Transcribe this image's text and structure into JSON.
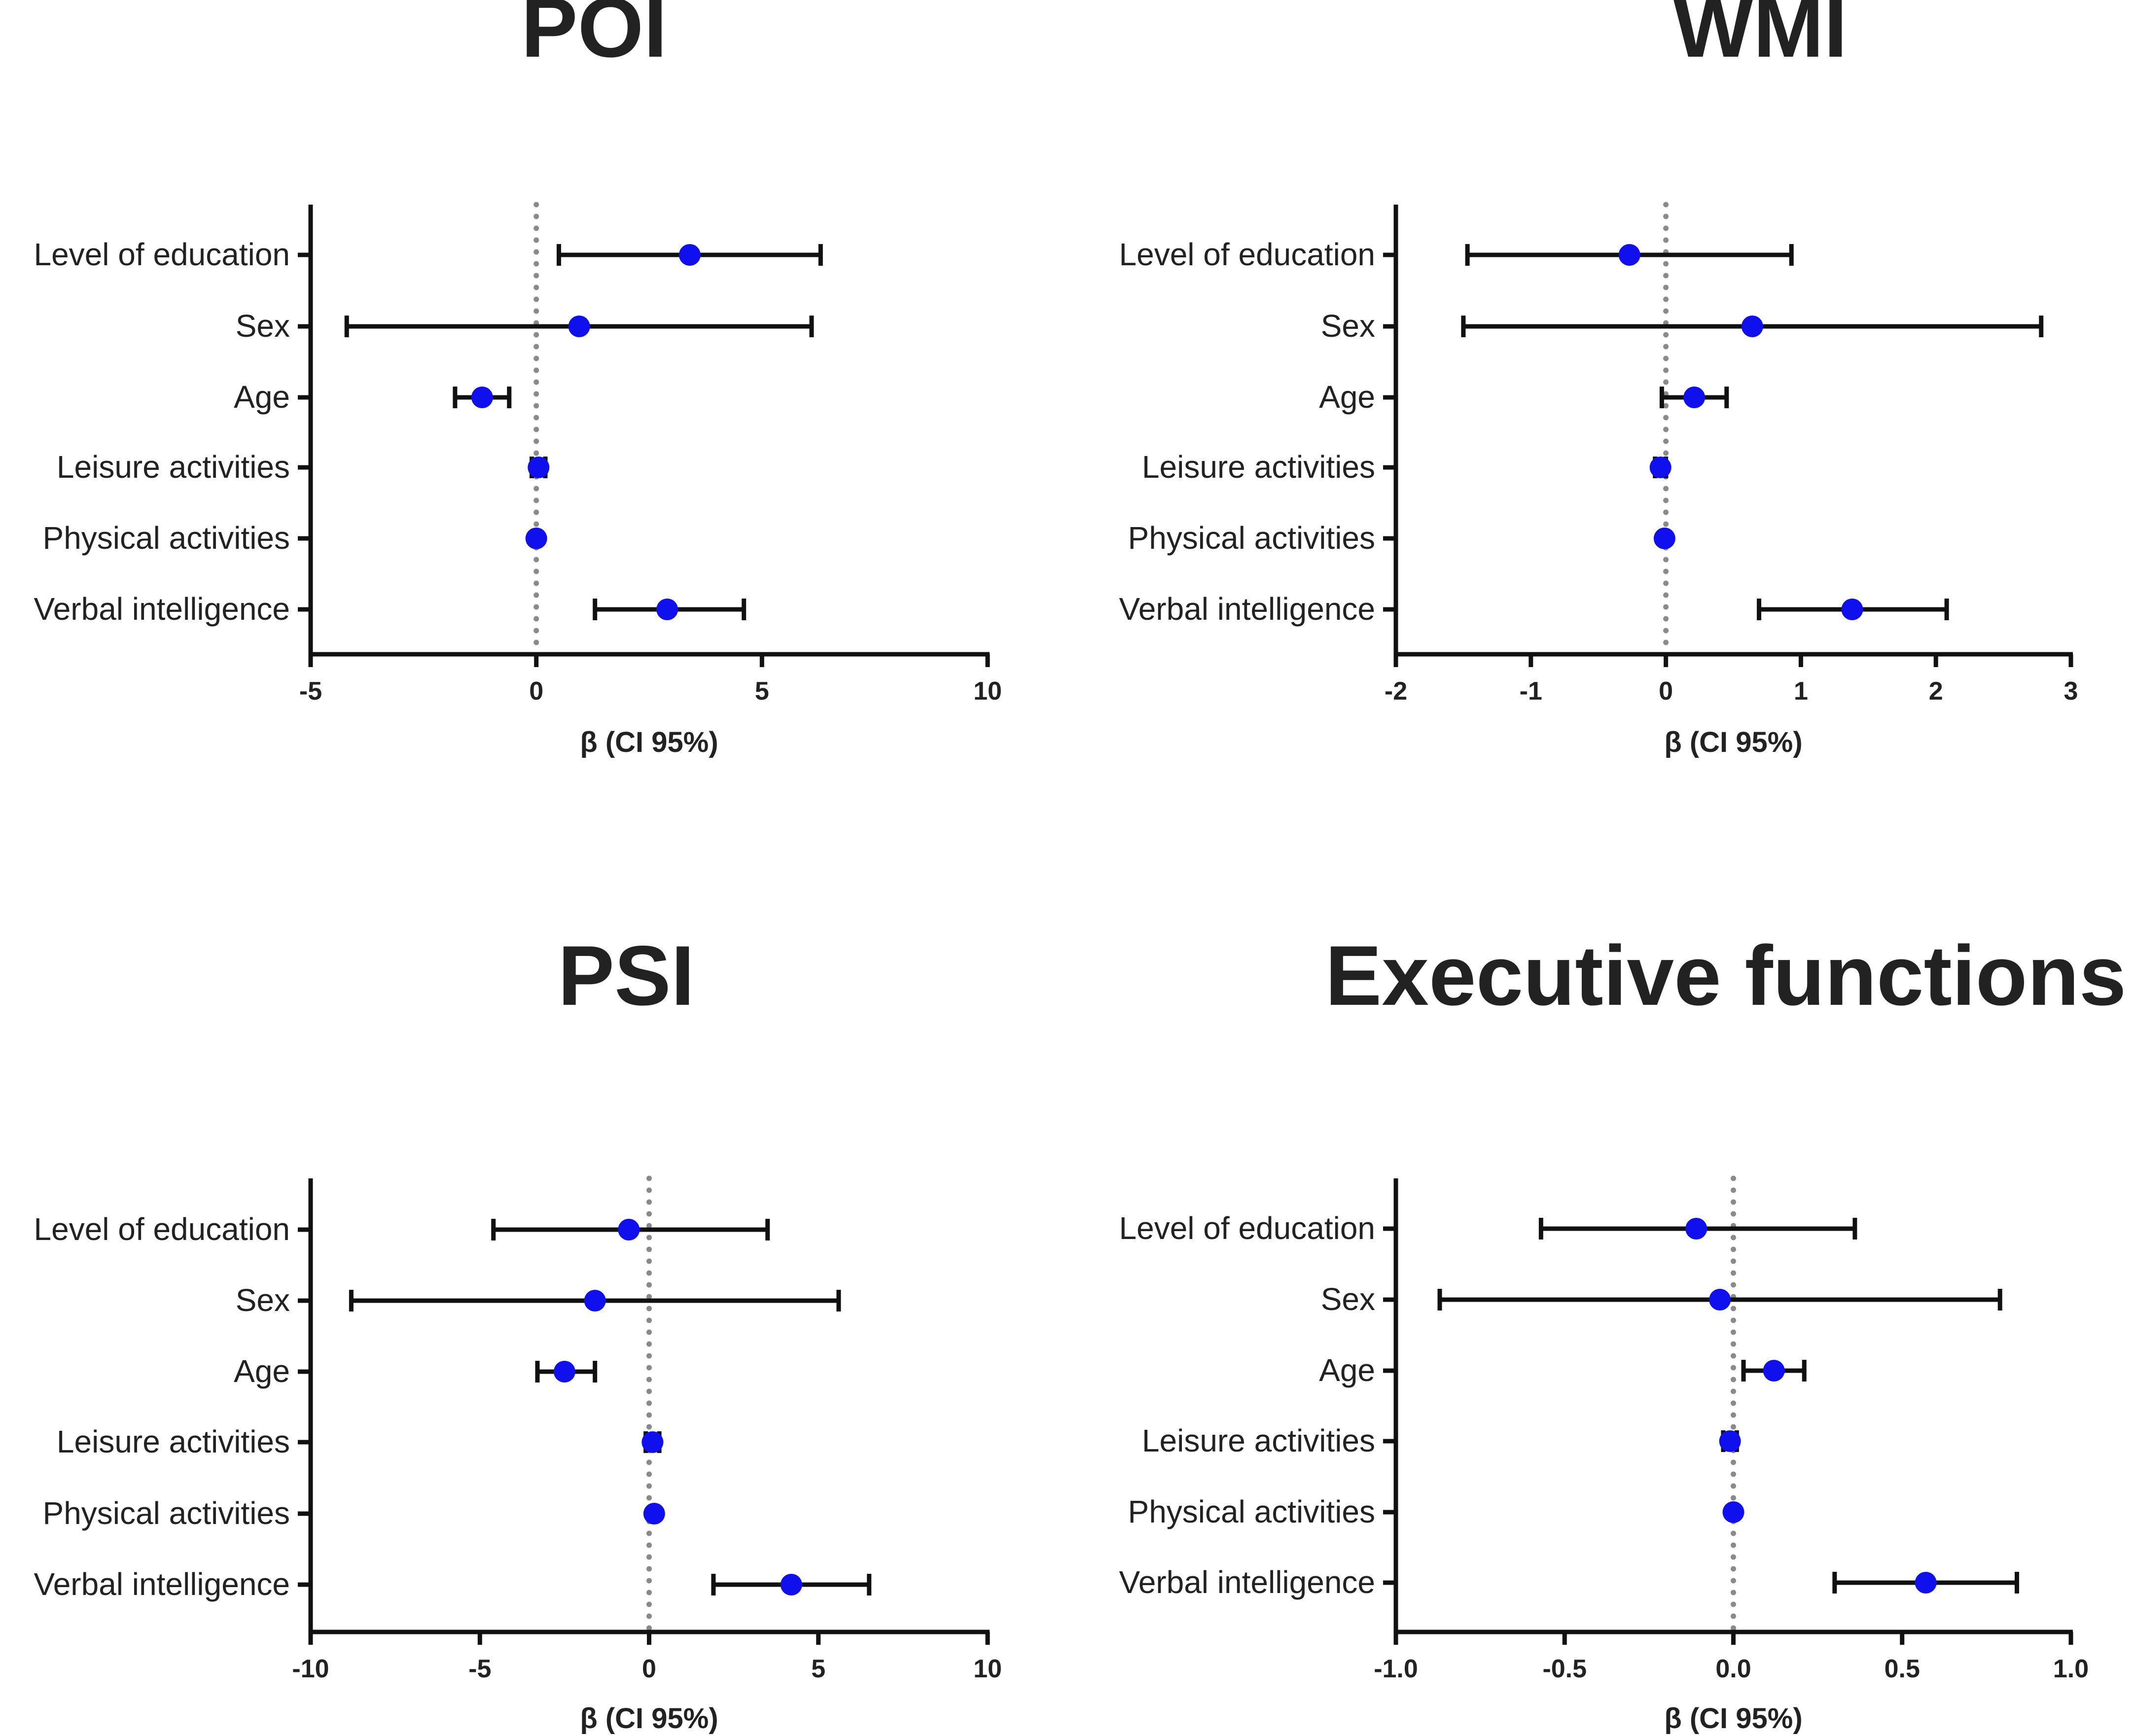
{
  "colors": {
    "point": "#1010ee",
    "line": "#111111",
    "reference_line": "#8a8a8a",
    "text": "#222222"
  },
  "chart_data": [
    {
      "type": "forest",
      "title": "POI",
      "xlabel": "β (CI 95%)",
      "xlim": [
        -5,
        10
      ],
      "xticks": [
        -5,
        0,
        5,
        10
      ],
      "tick_labels": [
        "-5",
        "0",
        "5",
        "10"
      ],
      "reference_line": 0,
      "rows": [
        {
          "label": "Level of education",
          "estimate": 3.4,
          "lower": 0.5,
          "upper": 6.3
        },
        {
          "label": "Sex",
          "estimate": 0.95,
          "lower": -4.2,
          "upper": 6.1
        },
        {
          "label": "Age",
          "estimate": -1.2,
          "lower": -1.8,
          "upper": -0.6
        },
        {
          "label": "Leisure activities",
          "estimate": 0.05,
          "lower": -0.1,
          "upper": 0.2
        },
        {
          "label": "Physical activities",
          "estimate": 0.0,
          "lower": 0.0,
          "upper": 0.0
        },
        {
          "label": "Verbal intelligence",
          "estimate": 2.9,
          "lower": 1.3,
          "upper": 4.6
        }
      ]
    },
    {
      "type": "forest",
      "title": "WMI",
      "xlabel": "β (CI 95%)",
      "xlim": [
        -2,
        3
      ],
      "xticks": [
        -2,
        -1,
        0,
        1,
        2,
        3
      ],
      "tick_labels": [
        "-2",
        "-1",
        "0",
        "1",
        "2",
        "3"
      ],
      "reference_line": 0,
      "rows": [
        {
          "label": "Level of education",
          "estimate": -0.27,
          "lower": -1.47,
          "upper": 0.93
        },
        {
          "label": "Sex",
          "estimate": 0.64,
          "lower": -1.5,
          "upper": 2.78
        },
        {
          "label": "Age",
          "estimate": 0.21,
          "lower": -0.03,
          "upper": 0.45
        },
        {
          "label": "Leisure activities",
          "estimate": -0.04,
          "lower": -0.08,
          "upper": 0.0
        },
        {
          "label": "Physical activities",
          "estimate": -0.01,
          "lower": -0.01,
          "upper": -0.01
        },
        {
          "label": "Verbal intelligence",
          "estimate": 1.38,
          "lower": 0.69,
          "upper": 2.08
        }
      ]
    },
    {
      "type": "forest",
      "title": "PSI",
      "xlabel": "β (CI 95%)",
      "xlim": [
        -10,
        10
      ],
      "xticks": [
        -10,
        -5,
        0,
        5,
        10
      ],
      "tick_labels": [
        "-10",
        "-5",
        "0",
        "5",
        "10"
      ],
      "reference_line": 0,
      "rows": [
        {
          "label": "Level of education",
          "estimate": -0.6,
          "lower": -4.6,
          "upper": 3.5
        },
        {
          "label": "Sex",
          "estimate": -1.6,
          "lower": -8.8,
          "upper": 5.6
        },
        {
          "label": "Age",
          "estimate": -2.5,
          "lower": -3.3,
          "upper": -1.6
        },
        {
          "label": "Leisure activities",
          "estimate": 0.1,
          "lower": -0.1,
          "upper": 0.3
        },
        {
          "label": "Physical activities",
          "estimate": 0.15,
          "lower": 0.15,
          "upper": 0.15
        },
        {
          "label": "Verbal intelligence",
          "estimate": 4.2,
          "lower": 1.9,
          "upper": 6.5
        }
      ]
    },
    {
      "type": "forest",
      "title": "Executive functions",
      "xlabel": "β (CI 95%)",
      "xlim": [
        -1.0,
        1.0
      ],
      "xticks": [
        -1.0,
        -0.5,
        0.0,
        0.5,
        1.0
      ],
      "tick_labels": [
        "-1.0",
        "-0.5",
        "0.0",
        "0.5",
        "1.0"
      ],
      "reference_line": 0,
      "rows": [
        {
          "label": "Level of education",
          "estimate": -0.11,
          "lower": -0.57,
          "upper": 0.36
        },
        {
          "label": "Sex",
          "estimate": -0.04,
          "lower": -0.87,
          "upper": 0.79
        },
        {
          "label": "Age",
          "estimate": 0.12,
          "lower": 0.03,
          "upper": 0.21
        },
        {
          "label": "Leisure activities",
          "estimate": -0.01,
          "lower": -0.03,
          "upper": 0.01
        },
        {
          "label": "Physical activities",
          "estimate": 0.0,
          "lower": 0.0,
          "upper": 0.0
        },
        {
          "label": "Verbal intelligence",
          "estimate": 0.57,
          "lower": 0.3,
          "upper": 0.84
        }
      ]
    }
  ]
}
